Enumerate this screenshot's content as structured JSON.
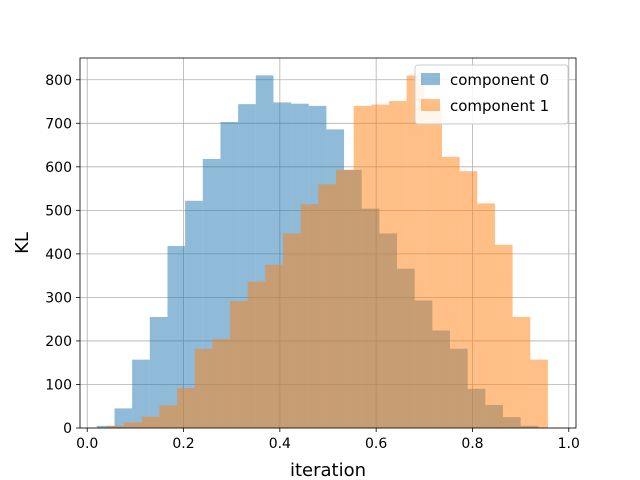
{
  "chart_data": {
    "type": "bar",
    "subtype": "overlapping-histogram",
    "title": "",
    "xlabel": "iteration",
    "ylabel": "KL",
    "xlim": [
      -0.015,
      1.015
    ],
    "ylim": [
      0,
      850
    ],
    "xticks": [
      0.0,
      0.2,
      0.4,
      0.6,
      0.8,
      1.0
    ],
    "xtick_labels": [
      "0.0",
      "0.2",
      "0.4",
      "0.6",
      "0.8",
      "1.0"
    ],
    "yticks": [
      0,
      100,
      200,
      300,
      400,
      500,
      600,
      700,
      800
    ],
    "ytick_labels": [
      "0",
      "100",
      "200",
      "300",
      "400",
      "500",
      "600",
      "700",
      "800"
    ],
    "grid": true,
    "legend_position": "top-right",
    "series": [
      {
        "name": "component 0",
        "color": "#1f77b4",
        "alpha": 0.5,
        "bin_edges": [
          0.02,
          0.0567,
          0.0933,
          0.13,
          0.1667,
          0.2033,
          0.24,
          0.2767,
          0.3133,
          0.35,
          0.3867,
          0.4233,
          0.46,
          0.4967,
          0.5333,
          0.57,
          0.6067,
          0.6433,
          0.68,
          0.7167,
          0.7533,
          0.79,
          0.8267,
          0.8633,
          0.9,
          0.9367
        ],
        "counts": [
          5,
          45,
          157,
          255,
          418,
          522,
          618,
          703,
          744,
          810,
          748,
          745,
          740,
          686,
          593,
          504,
          447,
          366,
          293,
          224,
          182,
          90,
          53,
          25,
          5
        ]
      },
      {
        "name": "component 1",
        "color": "#ff7f0e",
        "alpha": 0.5,
        "bin_edges": [
          0.04,
          0.0767,
          0.1133,
          0.15,
          0.1867,
          0.2233,
          0.26,
          0.2967,
          0.3333,
          0.37,
          0.4067,
          0.4433,
          0.48,
          0.5167,
          0.5533,
          0.59,
          0.6267,
          0.6633,
          0.7,
          0.7367,
          0.7733,
          0.81,
          0.8467,
          0.8833,
          0.92,
          0.9567
        ],
        "counts": [
          5,
          13,
          26,
          52,
          92,
          182,
          204,
          292,
          336,
          375,
          447,
          514,
          560,
          593,
          740,
          743,
          751,
          810,
          737,
          623,
          590,
          516,
          421,
          255,
          157
        ]
      }
    ]
  }
}
